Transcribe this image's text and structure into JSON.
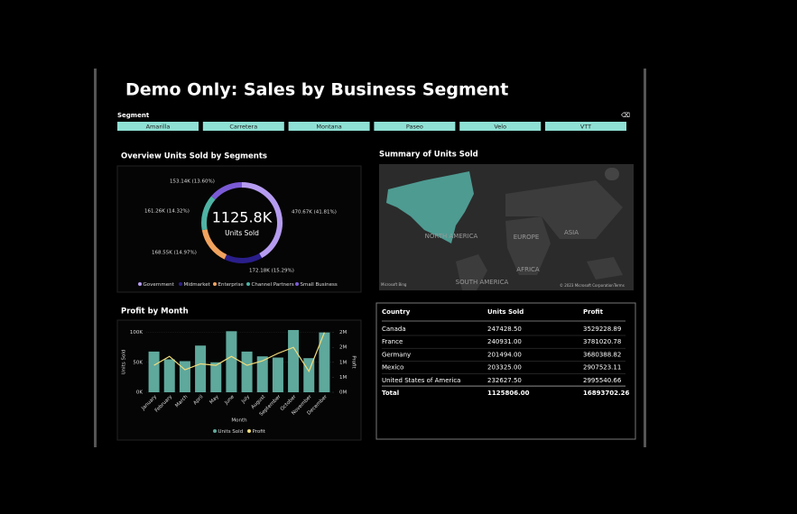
{
  "header": {
    "title": "Demo Only: Sales by Business Segment"
  },
  "slicer": {
    "label": "Segment",
    "options": [
      "Amarilla",
      "Carretera",
      "Montana",
      "Paseo",
      "Velo",
      "VTT"
    ]
  },
  "map": {
    "title": "Summary of Units Sold",
    "labels": [
      "NORTH AMERICA",
      "EUROPE",
      "ASIA",
      "AFRICA",
      "SOUTH AMERICA"
    ],
    "attribution": [
      "Microsoft Bing",
      "© 2023 Microsoft Corporation",
      "Terms"
    ]
  },
  "table": {
    "columns": [
      "Country",
      "Units Sold",
      "Profit"
    ],
    "rows": [
      [
        "Canada",
        "247428.50",
        "3529228.89"
      ],
      [
        "France",
        "240931.00",
        "3781020.78"
      ],
      [
        "Germany",
        "201494.00",
        "3680388.82"
      ],
      [
        "Mexico",
        "203325.00",
        "2907523.11"
      ],
      [
        "United States of America",
        "232627.50",
        "2995540.66"
      ]
    ],
    "total": [
      "Total",
      "1125806.00",
      "16893702.26"
    ]
  },
  "chart_data": [
    {
      "type": "donut",
      "title": "Overview Units Sold by Segments",
      "categories": [
        "Government",
        "Midmarket",
        "Enterprise",
        "Channel Partners",
        "Small Business"
      ],
      "values": [
        470670,
        172180,
        168550,
        161260,
        153140
      ],
      "value_labels": [
        "470.67K (41.81%)",
        "172.18K (15.29%)",
        "168.55K (14.97%)",
        "161.26K (14.32%)",
        "153.14K (13.60%)"
      ],
      "colors": [
        "#b69cf0",
        "#2a1e8a",
        "#f0a35e",
        "#4fb3a4",
        "#7b5ad6"
      ],
      "center_value": "1125.8K",
      "center_label": "Units Sold",
      "legend": "bottom"
    },
    {
      "type": "bar-line",
      "title": "Profit by Month",
      "x_label": "Month",
      "y_label": "Units Sold",
      "y2_label": "Profit",
      "categories": [
        "January",
        "February",
        "March",
        "April",
        "May",
        "June",
        "July",
        "August",
        "September",
        "October",
        "November",
        "December"
      ],
      "series": [
        {
          "name": "Units Sold",
          "color": "#5fa89c",
          "values": [
            68000,
            55000,
            52000,
            78000,
            50000,
            102000,
            68000,
            60000,
            58000,
            104000,
            57000,
            100000
          ]
        },
        {
          "name": "Profit",
          "color": "#f2dc7a",
          "axis": "y2",
          "values": [
            900000,
            1200000,
            750000,
            950000,
            900000,
            1200000,
            900000,
            1050000,
            1300000,
            1500000,
            700000,
            2000000
          ]
        }
      ],
      "ylim": [
        0,
        110000
      ],
      "yticks": [
        {
          "value": 0,
          "label": "0K"
        },
        {
          "value": 50000,
          "label": "50K"
        },
        {
          "value": 100000,
          "label": "100K"
        }
      ],
      "y2lim": [
        0,
        2200000
      ],
      "y2ticks": [
        {
          "value": 0,
          "label": "0M"
        },
        {
          "value": 500000,
          "label": "1M"
        },
        {
          "value": 1000000,
          "label": "1M"
        },
        {
          "value": 1500000,
          "label": "2M"
        },
        {
          "value": 2000000,
          "label": "2M"
        }
      ],
      "legend": "bottom"
    }
  ]
}
